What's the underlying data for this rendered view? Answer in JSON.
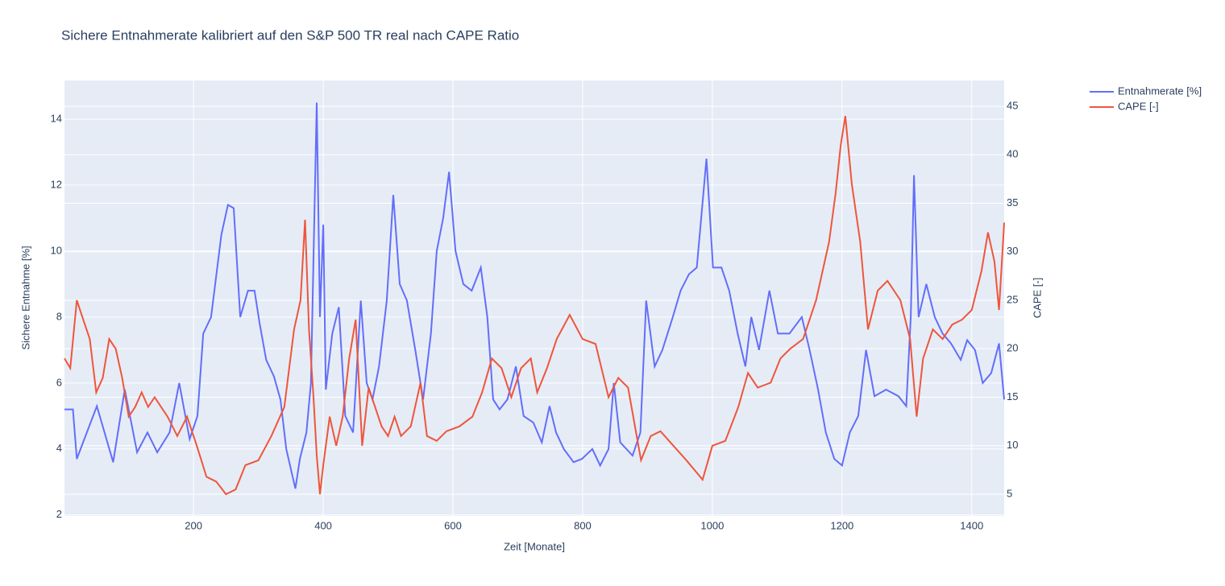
{
  "chart_data": {
    "type": "line",
    "title": "Sichere Entnahmerate kalibriert auf den S&P 500 TR real nach CAPE Ratio",
    "xlabel": "Zeit [Monate]",
    "ylabel": "Sichere Entnahme [%]",
    "y2label": "CAPE [-]",
    "xlim": [
      1,
      1450
    ],
    "xticks": [
      200,
      400,
      600,
      800,
      1000,
      1200,
      1400
    ],
    "ylim": [
      1.97,
      15.17
    ],
    "yticks": [
      2,
      4,
      6,
      8,
      10,
      12,
      14
    ],
    "y2lim": [
      2.76,
      47.66
    ],
    "y2ticks": [
      5,
      10,
      15,
      20,
      25,
      30,
      35,
      40,
      45
    ],
    "grid": true,
    "legend": "top-right",
    "series": [
      {
        "name": "Entnahmerate [%]",
        "color": "#636efa",
        "axis": "y",
        "x": [
          1,
          14,
          20,
          51,
          76,
          94,
          113,
          129,
          144,
          163,
          178,
          194,
          206,
          215,
          227,
          243,
          253,
          262,
          272,
          284,
          294,
          302,
          312,
          324,
          334,
          343,
          357,
          364,
          374,
          381,
          390,
          395,
          400,
          404,
          414,
          424,
          434,
          446,
          458,
          467,
          476,
          486,
          498,
          508,
          518,
          529,
          542,
          554,
          566,
          575,
          585,
          594,
          604,
          616,
          629,
          643,
          653,
          662,
          672,
          684,
          697,
          709,
          724,
          737,
          749,
          759,
          771,
          786,
          799,
          815,
          827,
          840,
          848,
          858,
          877,
          889,
          898,
          911,
          923,
          939,
          951,
          964,
          976,
          991,
          1001,
          1014,
          1026,
          1039,
          1051,
          1060,
          1072,
          1088,
          1101,
          1119,
          1138,
          1150,
          1163,
          1175,
          1188,
          1200,
          1212,
          1225,
          1237,
          1250,
          1268,
          1287,
          1299,
          1306,
          1311,
          1318,
          1330,
          1343,
          1355,
          1368,
          1383,
          1393,
          1405,
          1417,
          1430,
          1442,
          1450
        ],
        "values": [
          5.2,
          5.2,
          3.7,
          5.3,
          3.6,
          5.8,
          3.9,
          4.5,
          3.9,
          4.5,
          6.0,
          4.3,
          5.0,
          7.5,
          8.0,
          10.5,
          11.4,
          11.3,
          8.0,
          8.8,
          8.8,
          7.8,
          6.7,
          6.2,
          5.5,
          4.0,
          2.8,
          3.7,
          4.5,
          6.0,
          14.5,
          8.0,
          10.8,
          5.8,
          7.5,
          8.3,
          5.0,
          4.5,
          8.5,
          6.0,
          5.5,
          6.5,
          8.5,
          11.7,
          9.0,
          8.5,
          7.0,
          5.5,
          7.5,
          10.0,
          11.0,
          12.4,
          10.0,
          9.0,
          8.8,
          9.5,
          8.0,
          5.5,
          5.2,
          5.5,
          6.5,
          5.0,
          4.8,
          4.2,
          5.3,
          4.5,
          4.0,
          3.6,
          3.7,
          4.0,
          3.5,
          4.0,
          6.0,
          4.2,
          3.8,
          4.5,
          8.5,
          6.5,
          7.0,
          8.0,
          8.8,
          9.3,
          9.5,
          12.8,
          9.5,
          9.5,
          8.8,
          7.5,
          6.5,
          8.0,
          7.0,
          8.8,
          7.5,
          7.5,
          8.0,
          7.0,
          5.8,
          4.5,
          3.7,
          3.5,
          4.5,
          5.0,
          7.0,
          5.6,
          5.8,
          5.6,
          5.3,
          8.0,
          12.3,
          8.0,
          9.0,
          8.0,
          7.5,
          7.2,
          6.7,
          7.3,
          7.0,
          6.0,
          6.3,
          7.2,
          5.5
        ]
      },
      {
        "name": "CAPE [-]",
        "color": "#EF553B",
        "axis": "y2",
        "x": [
          1,
          10,
          20,
          30,
          40,
          50,
          60,
          70,
          80,
          90,
          100,
          110,
          120,
          130,
          140,
          150,
          160,
          175,
          190,
          205,
          220,
          235,
          250,
          265,
          280,
          300,
          320,
          340,
          355,
          365,
          372,
          378,
          385,
          390,
          395,
          400,
          410,
          420,
          430,
          440,
          450,
          460,
          470,
          480,
          490,
          500,
          510,
          520,
          535,
          550,
          560,
          575,
          590,
          610,
          630,
          645,
          660,
          675,
          690,
          705,
          720,
          730,
          745,
          760,
          780,
          800,
          820,
          840,
          855,
          870,
          890,
          905,
          920,
          940,
          960,
          985,
          1000,
          1020,
          1040,
          1055,
          1070,
          1090,
          1105,
          1120,
          1140,
          1160,
          1180,
          1190,
          1198,
          1205,
          1215,
          1228,
          1240,
          1255,
          1270,
          1290,
          1305,
          1315,
          1325,
          1340,
          1355,
          1370,
          1385,
          1400,
          1415,
          1425,
          1435,
          1442,
          1450
        ],
        "values": [
          19,
          18,
          25,
          23,
          21,
          15.5,
          17,
          21,
          20,
          17,
          13,
          14,
          15.5,
          14,
          15,
          14,
          13,
          11,
          13,
          10,
          6.8,
          6.3,
          5,
          5.5,
          8,
          8.5,
          11,
          14,
          22,
          25,
          33.3,
          22,
          15,
          9,
          5,
          8,
          13,
          10,
          13,
          19,
          23,
          10,
          16,
          14,
          12,
          11,
          13,
          11,
          12,
          16.5,
          11,
          10.5,
          11.5,
          12,
          13,
          15.5,
          19,
          18,
          15,
          18,
          19,
          15.5,
          18,
          21,
          23.5,
          21,
          20.5,
          15,
          17,
          16,
          8.5,
          11,
          11.5,
          10,
          8.5,
          6.5,
          10,
          10.5,
          14,
          17.5,
          16,
          16.5,
          19,
          20,
          21,
          25,
          31,
          36,
          41,
          44,
          37,
          31,
          22,
          26,
          27,
          25,
          21,
          13,
          19,
          22,
          21,
          22.5,
          23,
          24,
          28,
          32,
          29,
          24,
          33
        ]
      }
    ]
  }
}
